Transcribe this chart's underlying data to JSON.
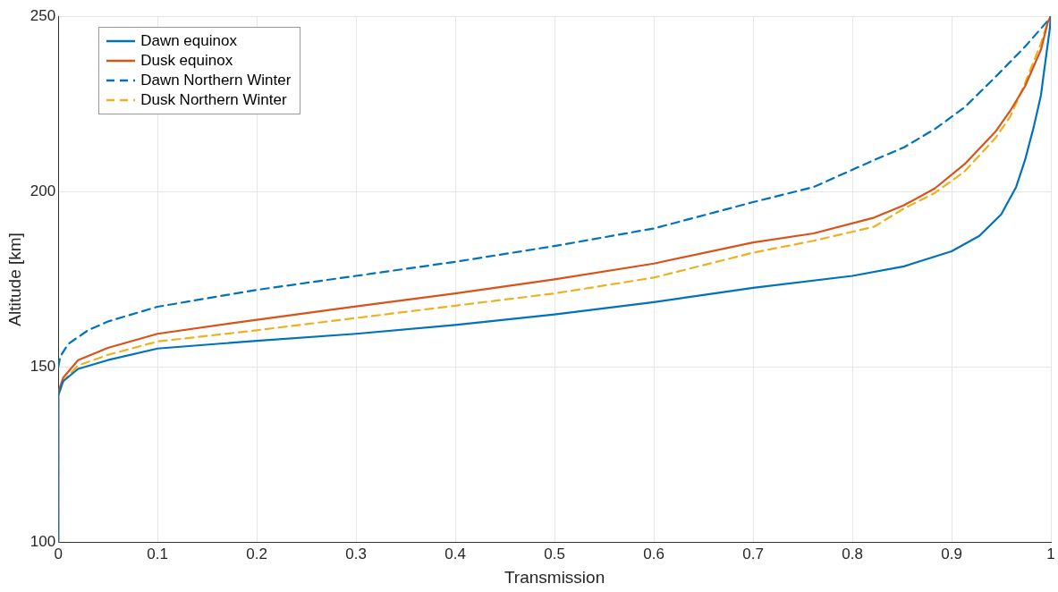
{
  "chart_data": {
    "type": "line",
    "xlabel": "Transmission",
    "ylabel": "Altitude [km]",
    "xlim": [
      0,
      1
    ],
    "xticks": [
      0,
      0.1,
      0.2,
      0.3,
      0.4,
      0.5,
      0.6,
      0.7,
      0.8,
      0.9,
      1
    ],
    "ylim": [
      100,
      250
    ],
    "yticks": [
      100,
      150,
      200,
      250
    ],
    "grid": true,
    "legend": "top left",
    "marker": "none",
    "series": [
      {
        "name": "Dawn equinox",
        "color": "#0072bd",
        "line_style": "solid",
        "x": [
          0,
          0,
          0.005,
          0.02,
          0.05,
          0.1,
          0.2,
          0.3,
          0.4,
          0.5,
          0.6,
          0.7,
          0.8,
          0.852,
          0.9,
          0.928,
          0.95,
          0.965,
          0.974,
          0.983,
          0.99,
          0.994,
          0.999,
          1
        ],
        "values": [
          100,
          142,
          146,
          149.5,
          152,
          155.3,
          157.5,
          159.5,
          162,
          165,
          168.5,
          172.6,
          176,
          178.7,
          183,
          187.4,
          193.5,
          201.3,
          209,
          218.7,
          227.4,
          236,
          246.5,
          250
        ]
      },
      {
        "name": "Dusk equinox",
        "color": "#d95319",
        "line_style": "solid",
        "x": [
          0,
          0,
          0.005,
          0.02,
          0.05,
          0.1,
          0.2,
          0.3,
          0.4,
          0.5,
          0.6,
          0.7,
          0.761,
          0.822,
          0.852,
          0.883,
          0.913,
          0.944,
          0.959,
          0.974,
          0.99,
          0.997,
          1
        ],
        "values": [
          100,
          143,
          147,
          152,
          155.5,
          159.5,
          163.5,
          167.3,
          171,
          175,
          179.5,
          185.5,
          188.1,
          192.6,
          196.1,
          200.9,
          207.8,
          217,
          223,
          230,
          240.4,
          248.3,
          250
        ]
      },
      {
        "name": "Dawn Northern Winter",
        "color": "#0072bd",
        "line_style": "dashed",
        "x": [
          0,
          0.002,
          0.01,
          0.03,
          0.05,
          0.1,
          0.2,
          0.3,
          0.4,
          0.5,
          0.6,
          0.7,
          0.761,
          0.822,
          0.852,
          0.883,
          0.913,
          0.944,
          0.974,
          0.997,
          1
        ],
        "values": [
          150,
          153,
          156.6,
          160.5,
          163,
          167.2,
          172,
          176,
          180,
          184.5,
          189.5,
          197,
          201.3,
          209,
          212.6,
          217.8,
          224,
          232.6,
          241.3,
          248.7,
          250
        ]
      },
      {
        "name": "Dusk Northern Winter",
        "color": "#edb120",
        "line_style": "dashed",
        "x": [
          0,
          0,
          0.005,
          0.02,
          0.05,
          0.1,
          0.2,
          0.3,
          0.4,
          0.5,
          0.6,
          0.7,
          0.761,
          0.822,
          0.852,
          0.883,
          0.913,
          0.944,
          0.959,
          0.974,
          0.99,
          0.997,
          1
        ],
        "values": [
          100,
          142,
          146,
          150.5,
          153.5,
          157.3,
          160.5,
          164,
          167.5,
          171,
          175.5,
          182.6,
          186,
          190,
          195.2,
          199.6,
          205.7,
          215.2,
          221.3,
          230.9,
          242.2,
          248.3,
          250
        ]
      }
    ]
  }
}
